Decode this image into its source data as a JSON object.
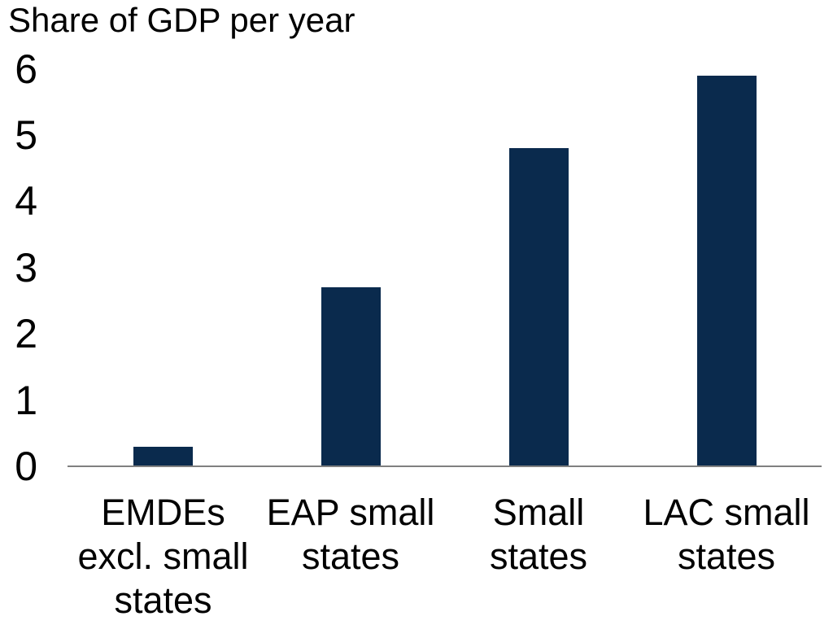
{
  "chart_data": {
    "type": "bar",
    "title": "Share of GDP per year",
    "categories": [
      "EMDEs\nexcl. small\nstates",
      "EAP small\nstates",
      "Small\nstates",
      "LAC small\nstates"
    ],
    "values": [
      0.3,
      2.7,
      4.8,
      5.9
    ],
    "yticks": [
      0,
      1,
      2,
      3,
      4,
      5,
      6
    ],
    "ylim": [
      0,
      6
    ],
    "xlabel": "",
    "ylabel": "",
    "grid": false,
    "legend": false,
    "bar_color": "#0a2a4d",
    "axis_line_color": "#808080",
    "text_color": "#000000"
  }
}
